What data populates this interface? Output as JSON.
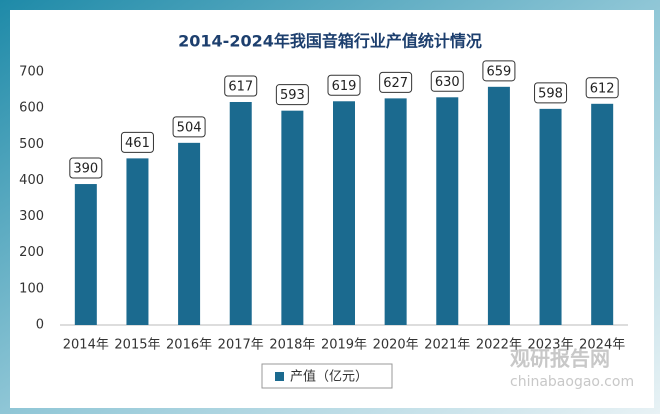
{
  "chart_data": {
    "type": "bar",
    "title": "2014-2024年我国音箱行业产值统计情况",
    "categories": [
      "2014年",
      "2015年",
      "2016年",
      "2017年",
      "2018年",
      "2019年",
      "2020年",
      "2021年",
      "2022年",
      "2023年",
      "2024年"
    ],
    "series": [
      {
        "name": "产值（亿元）",
        "color": "#1b6a8f",
        "values": [
          390,
          461,
          504,
          617,
          593,
          619,
          627,
          630,
          659,
          598,
          612
        ]
      }
    ],
    "ylim": [
      0,
      700
    ],
    "yticks": [
      0,
      100,
      200,
      300,
      400,
      500,
      600,
      700
    ],
    "grid": false,
    "legend": "bottom",
    "data_labels": true
  },
  "watermark": {
    "name": "观研报告网",
    "site": "chinabaogao.com"
  }
}
